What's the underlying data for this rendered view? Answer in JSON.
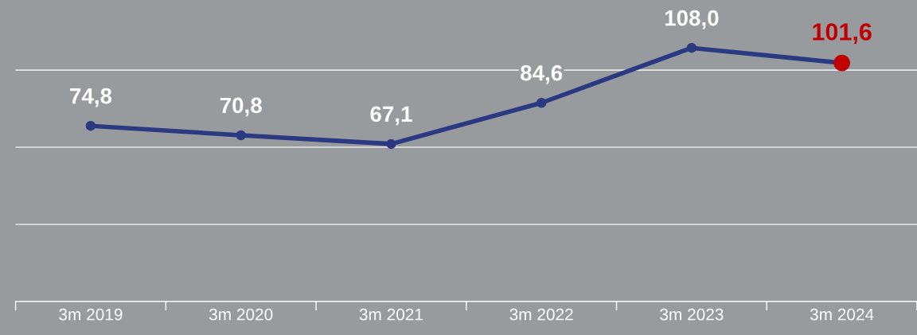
{
  "chart_data": {
    "type": "line",
    "categories": [
      "3m 2019",
      "3m 2020",
      "3m 2021",
      "3m 2022",
      "3m 2023",
      "3m 2024"
    ],
    "series": [
      {
        "color": "#2b3a80",
        "colors": [
          "#2b3a80",
          "#2b3a80",
          "#2b3a80",
          "#2b3a80",
          "#2b3a80",
          "#c00000"
        ],
        "values": [
          74.8,
          70.8,
          67.1,
          84.6,
          108.0,
          101.6
        ],
        "value_labels": [
          "74,8",
          "70,8",
          "67,1",
          "84,6",
          "108,0",
          "101,6"
        ]
      }
    ],
    "marker": "circle",
    "line_style": "solid",
    "ylim": [
      0,
      128.4
    ],
    "yticks": [
      {
        "value": 0,
        "label": null
      },
      {
        "value": 32.85,
        "label": null
      },
      {
        "value": 65.7,
        "label": null
      },
      {
        "value": 98.55,
        "label": null
      }
    ],
    "grid": "y",
    "tick_labels": "x"
  }
}
